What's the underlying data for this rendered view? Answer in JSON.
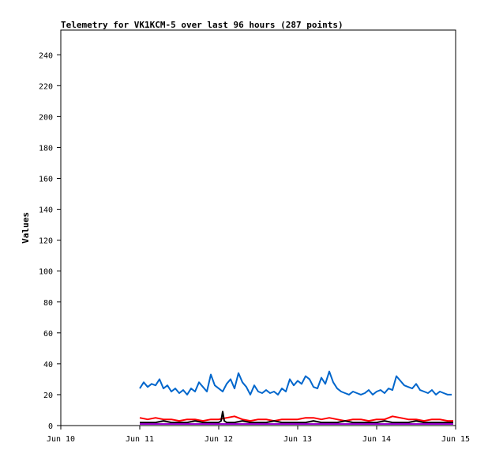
{
  "chart_data": {
    "type": "line",
    "title": "Telemetry for VK1KCM-5 over last 96 hours (287 points)",
    "xlabel": "",
    "ylabel": "Values",
    "x_ticks": [
      "Jun 10",
      "Jun 11",
      "Jun 12",
      "Jun 13",
      "Jun 14",
      "Jun 15"
    ],
    "xlim_days": [
      10,
      15
    ],
    "ylim": [
      0,
      256
    ],
    "y_ticks": [
      0,
      20,
      40,
      60,
      80,
      100,
      120,
      140,
      160,
      180,
      200,
      220,
      240
    ],
    "grid": false,
    "legend": "none",
    "series": [
      {
        "color": "#0066cc",
        "x_days": [
          11.0,
          11.05,
          11.1,
          11.15,
          11.2,
          11.25,
          11.3,
          11.35,
          11.4,
          11.45,
          11.5,
          11.55,
          11.6,
          11.65,
          11.7,
          11.75,
          11.8,
          11.85,
          11.9,
          11.95,
          12.0,
          12.05,
          12.1,
          12.15,
          12.2,
          12.25,
          12.3,
          12.35,
          12.4,
          12.45,
          12.5,
          12.55,
          12.6,
          12.65,
          12.7,
          12.75,
          12.8,
          12.85,
          12.9,
          12.95,
          13.0,
          13.05,
          13.1,
          13.15,
          13.2,
          13.25,
          13.3,
          13.35,
          13.4,
          13.45,
          13.5,
          13.55,
          13.6,
          13.65,
          13.7,
          13.75,
          13.8,
          13.85,
          13.9,
          13.95,
          14.0,
          14.05,
          14.1,
          14.15,
          14.2,
          14.25,
          14.3,
          14.35,
          14.4,
          14.45,
          14.5,
          14.55,
          14.6,
          14.65,
          14.7,
          14.75,
          14.8,
          14.85,
          14.9,
          14.95
        ],
        "values": [
          24,
          28,
          25,
          27,
          26,
          30,
          24,
          26,
          22,
          24,
          21,
          23,
          20,
          24,
          22,
          28,
          25,
          22,
          33,
          26,
          24,
          22,
          27,
          30,
          24,
          34,
          28,
          25,
          20,
          26,
          22,
          21,
          23,
          21,
          22,
          20,
          24,
          22,
          30,
          26,
          29,
          27,
          32,
          30,
          25,
          24,
          31,
          27,
          35,
          28,
          24,
          22,
          21,
          20,
          22,
          21,
          20,
          21,
          23,
          20,
          22,
          23,
          21,
          24,
          23,
          32,
          29,
          26,
          25,
          24,
          27,
          23,
          22,
          21,
          23,
          20,
          22,
          21,
          20,
          20
        ]
      },
      {
        "color": "#ff0000",
        "x_days": [
          11.0,
          11.1,
          11.2,
          11.3,
          11.4,
          11.5,
          11.6,
          11.7,
          11.8,
          11.9,
          12.0,
          12.1,
          12.2,
          12.3,
          12.4,
          12.5,
          12.6,
          12.7,
          12.8,
          12.9,
          13.0,
          13.1,
          13.2,
          13.3,
          13.4,
          13.5,
          13.6,
          13.7,
          13.8,
          13.9,
          14.0,
          14.1,
          14.2,
          14.3,
          14.4,
          14.5,
          14.6,
          14.7,
          14.8,
          14.9,
          14.97
        ],
        "values": [
          5,
          4,
          5,
          4,
          4,
          3,
          4,
          4,
          3,
          4,
          4,
          5,
          6,
          4,
          3,
          4,
          4,
          3,
          4,
          4,
          4,
          5,
          5,
          4,
          5,
          4,
          3,
          4,
          4,
          3,
          4,
          4,
          6,
          5,
          4,
          4,
          3,
          4,
          4,
          3,
          3
        ]
      },
      {
        "color": "#000000",
        "x_days": [
          11.0,
          11.1,
          11.2,
          11.3,
          11.4,
          11.5,
          11.6,
          11.7,
          11.8,
          11.9,
          12.0,
          12.03,
          12.05,
          12.07,
          12.1,
          12.2,
          12.3,
          12.4,
          12.5,
          12.6,
          12.7,
          12.8,
          12.9,
          13.0,
          13.1,
          13.2,
          13.3,
          13.4,
          13.5,
          13.6,
          13.7,
          13.8,
          13.9,
          14.0,
          14.1,
          14.2,
          14.3,
          14.4,
          14.5,
          14.6,
          14.7,
          14.8,
          14.9,
          14.97
        ],
        "values": [
          2,
          2,
          2,
          3,
          2,
          2,
          2,
          3,
          2,
          2,
          2,
          3,
          9,
          3,
          2,
          2,
          3,
          2,
          2,
          2,
          3,
          2,
          2,
          2,
          2,
          3,
          2,
          2,
          2,
          3,
          2,
          2,
          2,
          2,
          3,
          2,
          2,
          2,
          3,
          2,
          2,
          2,
          2,
          2
        ]
      },
      {
        "color": "#9900cc",
        "x_days": [
          11.0,
          11.5,
          12.0,
          12.5,
          13.0,
          13.5,
          14.0,
          14.5,
          14.97
        ],
        "values": [
          1,
          1,
          1,
          1,
          1,
          1,
          1,
          1,
          1
        ]
      }
    ]
  }
}
